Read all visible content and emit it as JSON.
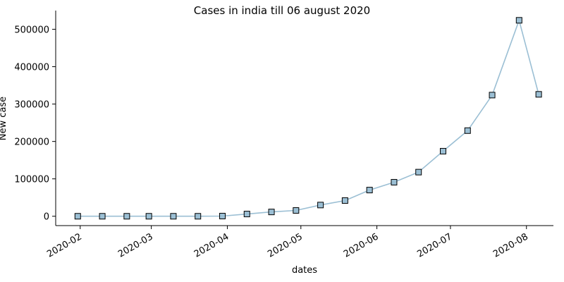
{
  "chart_data": {
    "type": "line",
    "title": "Cases in india till 06 august 2020",
    "xlabel": "dates",
    "ylabel": "New case",
    "grid": false,
    "line_color": "#9bbfd4",
    "marker": "square",
    "marker_face_color": "#9bbfd4",
    "marker_edge_color": "#000000",
    "xlim": [
      "2020-01-22",
      "2020-08-12"
    ],
    "ylim": [
      -25000,
      550000
    ],
    "x_ticks": [
      {
        "date": "2020-02-01",
        "label": "2020-02"
      },
      {
        "date": "2020-03-01",
        "label": "2020-03"
      },
      {
        "date": "2020-04-01",
        "label": "2020-04"
      },
      {
        "date": "2020-05-01",
        "label": "2020-05"
      },
      {
        "date": "2020-06-01",
        "label": "2020-06"
      },
      {
        "date": "2020-07-01",
        "label": "2020-07"
      },
      {
        "date": "2020-08-01",
        "label": "2020-08"
      }
    ],
    "y_ticks": [
      {
        "value": 0,
        "label": "0"
      },
      {
        "value": 100000,
        "label": "100000"
      },
      {
        "value": 200000,
        "label": "200000"
      },
      {
        "value": 300000,
        "label": "300000"
      },
      {
        "value": 400000,
        "label": "400000"
      },
      {
        "value": 500000,
        "label": "500000"
      }
    ],
    "series": [
      {
        "x": [
          "2020-01-31",
          "2020-02-10",
          "2020-02-20",
          "2020-02-29",
          "2020-03-10",
          "2020-03-20",
          "2020-03-30",
          "2020-04-09",
          "2020-04-19",
          "2020-04-29",
          "2020-05-09",
          "2020-05-19",
          "2020-05-29",
          "2020-06-08",
          "2020-06-18",
          "2020-06-28",
          "2020-07-08",
          "2020-07-18",
          "2020-07-29",
          "2020-08-06"
        ],
        "y": [
          0,
          0,
          0,
          0,
          0,
          0,
          500,
          6000,
          11500,
          15500,
          30000,
          42000,
          70000,
          91000,
          118000,
          174000,
          229000,
          324000,
          524000,
          326000
        ]
      }
    ]
  }
}
